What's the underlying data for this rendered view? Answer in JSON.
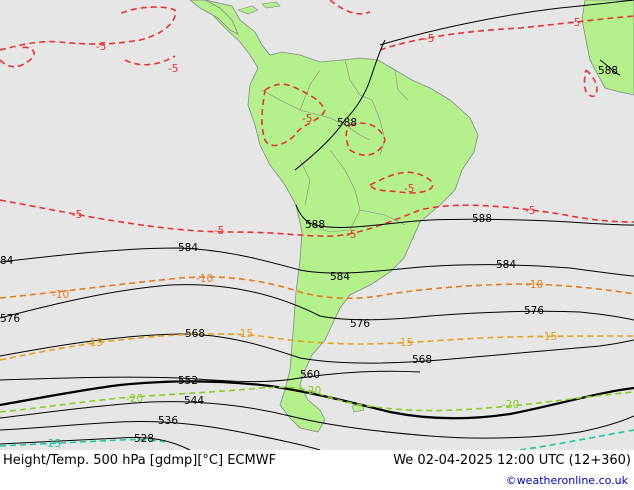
{
  "footer": {
    "title": "Height/Temp. 500 hPa [gdmp][°C] ECMWF",
    "datetime": "We 02-04-2025 12:00 UTC (12+360)",
    "credit": "©weatheronline.co.uk"
  },
  "height_labels": {
    "h588a": "588",
    "h588b": "588",
    "h588c": "588",
    "h588d": "588",
    "h584a": "584",
    "h584b": "584",
    "h584c": "584",
    "h584d": "84",
    "h576a": "576",
    "h576b": "576",
    "h576c": "576",
    "h568a": "568",
    "h568b": "568",
    "h560": "560",
    "h552": "552",
    "h544": "544",
    "h536": "536",
    "h528": "528"
  },
  "temp_labels": {
    "t5a": "-5",
    "t5b": "-5",
    "t5c": "-5",
    "t5d": "-5",
    "t5e": "-5",
    "t5f": "-5",
    "t5g": "-5",
    "t5h": "-5",
    "t5i": "-5",
    "t5j": "-5",
    "t10a": "-10",
    "t10b": "-10",
    "t10c": "-10",
    "t15a": "-15",
    "t15b": "-15",
    "t15c": "-15",
    "t15d": "-15",
    "t20a": "-20",
    "t20b": "-20",
    "t20c": "-20",
    "t25": "-25"
  },
  "colors": {
    "ocean": "#e6e6e6",
    "land": "#b4f08c",
    "height_contour": "#000000",
    "temp_minus5": "#e63333",
    "temp_minus10": "#e67b1e",
    "temp_minus15": "#e6a01e",
    "temp_minus20": "#88cc22",
    "temp_minus25": "#1ec8a0"
  }
}
